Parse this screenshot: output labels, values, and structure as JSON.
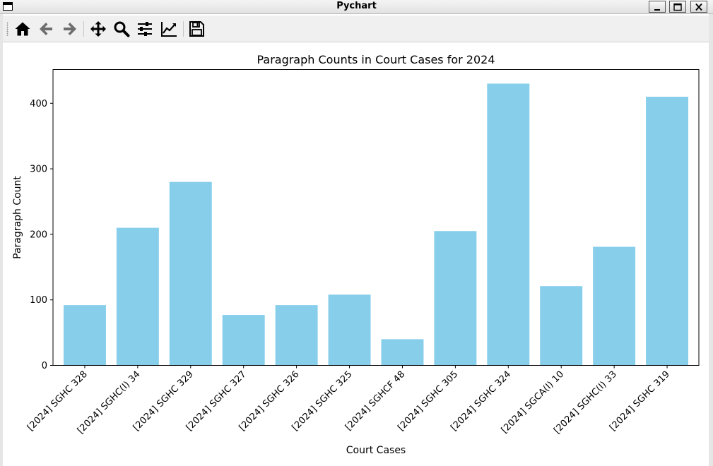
{
  "window": {
    "title": "Pychart"
  },
  "toolbar": {
    "buttons": [
      {
        "name": "home",
        "icon": "home-icon"
      },
      {
        "name": "back",
        "icon": "arrow-left-icon"
      },
      {
        "name": "forward",
        "icon": "arrow-right-icon"
      },
      {
        "name": "pan",
        "icon": "move-icon"
      },
      {
        "name": "zoom",
        "icon": "zoom-icon"
      },
      {
        "name": "configure-subplots",
        "icon": "sliders-icon"
      },
      {
        "name": "edit-axis",
        "icon": "chart-line-icon"
      },
      {
        "name": "save",
        "icon": "save-icon"
      }
    ]
  },
  "chart_data": {
    "type": "bar",
    "title": "Paragraph Counts in Court Cases for 2024",
    "xlabel": "Court Cases",
    "ylabel": "Paragraph Count",
    "categories": [
      "[2024] SGHC 328",
      "[2024] SGHC(I) 34",
      "[2024] SGHC 329",
      "[2024] SGHC 327",
      "[2024] SGHC 326",
      "[2024] SGHC 325",
      "[2024] SGHCF 48",
      "[2024] SGHC 305",
      "[2024] SGHC 324",
      "[2024] SGCA(I) 10",
      "[2024] SGHC(I) 33",
      "[2024] SGHC 319"
    ],
    "values": [
      92,
      210,
      280,
      77,
      92,
      108,
      40,
      205,
      430,
      121,
      181,
      410
    ],
    "ylim": [
      0,
      451.5
    ],
    "yticks": [
      0,
      100,
      200,
      300,
      400
    ],
    "bar_color": "#87ceeb",
    "grid": false,
    "legend": "none"
  }
}
